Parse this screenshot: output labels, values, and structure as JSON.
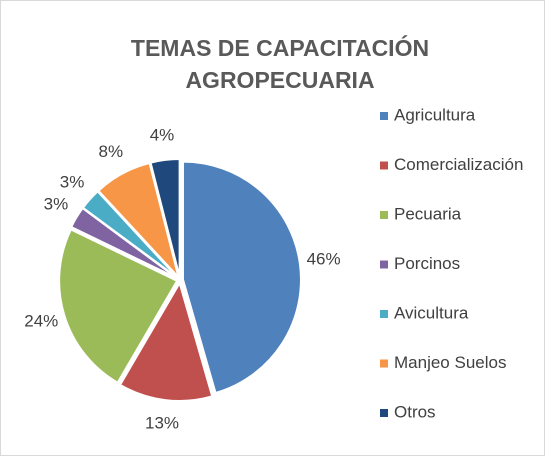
{
  "chart_data": {
    "type": "pie",
    "title": "TEMAS DE CAPACITACIÓN AGROPECUARIA",
    "categories": [
      "Agricultura",
      "Comercialización",
      "Pecuaria",
      "Porcinos",
      "Avicultura",
      "Manjeo Suelos",
      "Otros"
    ],
    "values": [
      46,
      13,
      24,
      3,
      3,
      8,
      4
    ],
    "value_labels": [
      "46%",
      "13%",
      "24%",
      "3%",
      "3%",
      "8%",
      "4%"
    ],
    "colors": [
      "#4f81bd",
      "#c0504d",
      "#9bbb59",
      "#8064a2",
      "#4bacc6",
      "#f79646",
      "#1f497d"
    ],
    "legend": "right"
  }
}
